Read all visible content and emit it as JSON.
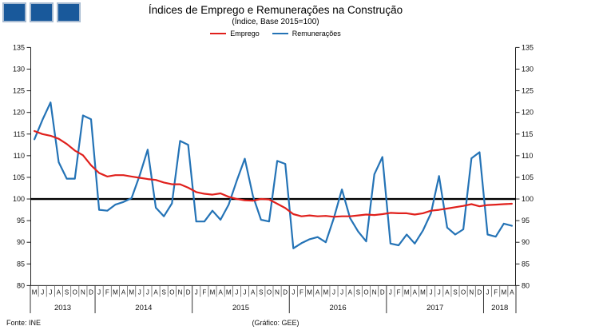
{
  "header": {
    "title": "Índices de Emprego e Remunerações na Construção",
    "subtitle": "(Índice, Base 2015=100)"
  },
  "logo": {
    "square_count": 3,
    "fill": "#19599B",
    "border": "#A9BCD2"
  },
  "footer": {
    "source": "Fonte: INE",
    "credit": "(Gráfico: GEE)"
  },
  "chart_data": {
    "type": "line",
    "title": "Índices de Emprego e Remunerações na Construção",
    "subtitle": "(Índice, Base 2015=100)",
    "ylim": [
      80,
      135
    ],
    "yticks": [
      80,
      85,
      90,
      95,
      100,
      105,
      110,
      115,
      120,
      125,
      130,
      135
    ],
    "baseline": 100,
    "baseline_color": "#000000",
    "axis_color": "#222222",
    "grid": false,
    "legend_position": "top-center",
    "x_month_letters": [
      "M",
      "J",
      "J",
      "A",
      "S",
      "O",
      "N",
      "D",
      "J",
      "F",
      "M",
      "A",
      "M",
      "J",
      "J",
      "A",
      "S",
      "O",
      "N",
      "D",
      "J",
      "F",
      "M",
      "A",
      "M",
      "J",
      "J",
      "A",
      "S",
      "O",
      "N",
      "D",
      "J",
      "F",
      "M",
      "A",
      "M",
      "J",
      "J",
      "A",
      "S",
      "O",
      "N",
      "D",
      "J",
      "F",
      "M",
      "A",
      "M",
      "J",
      "J",
      "A",
      "S",
      "O",
      "N",
      "D",
      "J",
      "F",
      "M",
      "A"
    ],
    "years": [
      {
        "label": "2013",
        "months": 8
      },
      {
        "label": "2014",
        "months": 12
      },
      {
        "label": "2015",
        "months": 12
      },
      {
        "label": "2016",
        "months": 12
      },
      {
        "label": "2017",
        "months": 12
      },
      {
        "label": "2018",
        "months": 4
      }
    ],
    "series": [
      {
        "name": "Emprego",
        "color": "#E0201C",
        "values": [
          115.7,
          115.0,
          114.6,
          113.9,
          112.7,
          111.2,
          110.1,
          107.8,
          106.0,
          105.2,
          105.5,
          105.5,
          105.2,
          104.9,
          104.6,
          104.4,
          103.8,
          103.4,
          103.4,
          102.6,
          101.6,
          101.2,
          101.0,
          101.3,
          100.5,
          100.0,
          99.7,
          99.6,
          100.0,
          99.9,
          98.9,
          97.9,
          96.5,
          96.0,
          96.2,
          96.0,
          96.1,
          95.9,
          96.0,
          96.0,
          96.2,
          96.4,
          96.3,
          96.5,
          96.8,
          96.7,
          96.7,
          96.4,
          96.7,
          97.3,
          97.5,
          97.8,
          98.1,
          98.4,
          98.8,
          98.3,
          98.6,
          98.7,
          98.8,
          98.9
        ]
      },
      {
        "name": "Remunerações",
        "color": "#2473B6",
        "values": [
          113.8,
          118.3,
          122.3,
          108.5,
          104.7,
          104.7,
          119.3,
          118.4,
          97.5,
          97.3,
          98.7,
          99.3,
          100.2,
          105.4,
          111.4,
          98.0,
          96.0,
          99.0,
          113.4,
          112.5,
          94.8,
          94.8,
          97.3,
          95.2,
          98.7,
          104.2,
          109.3,
          100.7,
          95.2,
          94.8,
          108.8,
          108.1,
          88.6,
          89.8,
          90.7,
          91.2,
          90.0,
          95.6,
          102.2,
          95.6,
          92.5,
          90.2,
          105.7,
          109.7,
          89.7,
          89.3,
          91.8,
          89.7,
          92.7,
          96.7,
          105.3,
          93.4,
          91.8,
          93.0,
          109.4,
          110.8,
          91.8,
          91.3,
          94.3,
          93.8
        ]
      }
    ]
  }
}
